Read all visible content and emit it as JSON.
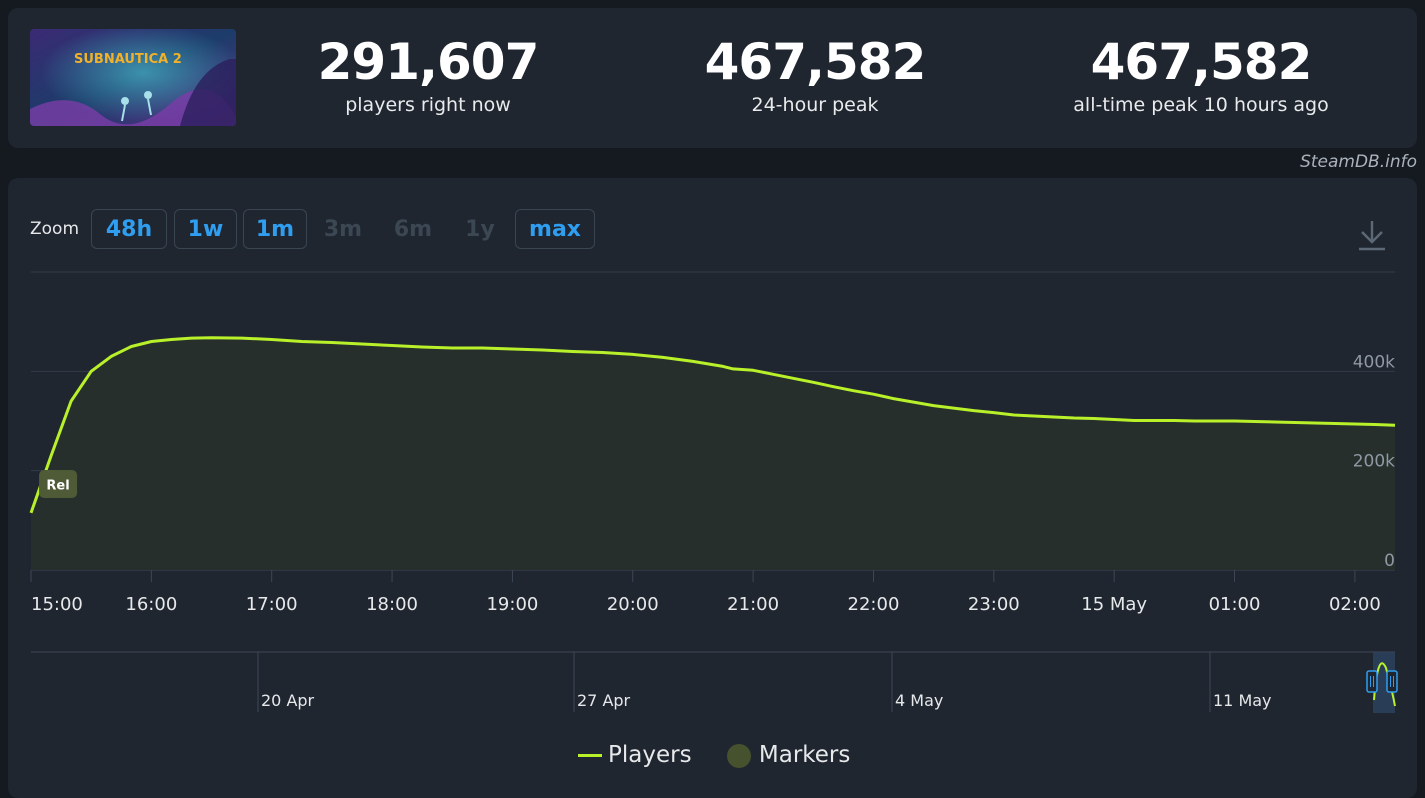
{
  "header": {
    "game_logo_text": "SUBNAUTICA 2",
    "stats": [
      {
        "value": "291,607",
        "label": "players right now"
      },
      {
        "value": "467,582",
        "label": "24-hour peak"
      },
      {
        "value": "467,582",
        "label": "all-time peak 10 hours ago"
      }
    ]
  },
  "credit": "SteamDB.info",
  "zoom": {
    "label": "Zoom",
    "options": [
      {
        "label": "48h",
        "enabled": true
      },
      {
        "label": "1w",
        "enabled": true
      },
      {
        "label": "1m",
        "enabled": true
      },
      {
        "label": "3m",
        "enabled": false
      },
      {
        "label": "6m",
        "enabled": false
      },
      {
        "label": "1y",
        "enabled": false
      },
      {
        "label": "max",
        "enabled": true
      }
    ]
  },
  "icons": {
    "download": "download-icon"
  },
  "legend": {
    "players": "Players",
    "markers": "Markers"
  },
  "colors": {
    "line": "#b8f02a",
    "accent": "#2f9ef0",
    "panel": "#1f2630",
    "background": "#151a21"
  },
  "chart_data": {
    "type": "line",
    "series": [
      {
        "name": "Players",
        "x": [
          "15:00",
          "15:10",
          "15:20",
          "15:30",
          "15:40",
          "15:50",
          "16:00",
          "16:10",
          "16:20",
          "16:30",
          "16:45",
          "17:00",
          "17:15",
          "17:30",
          "17:45",
          "18:00",
          "18:15",
          "18:30",
          "18:45",
          "19:00",
          "19:15",
          "19:30",
          "19:45",
          "20:00",
          "20:15",
          "20:30",
          "20:45",
          "20:50",
          "21:00",
          "21:10",
          "21:20",
          "21:30",
          "21:40",
          "21:50",
          "22:00",
          "22:10",
          "22:20",
          "22:30",
          "22:40",
          "22:50",
          "23:00",
          "23:10",
          "23:20",
          "23:30",
          "23:40",
          "23:50",
          "00:00",
          "00:10",
          "00:20",
          "00:30",
          "00:40",
          "00:50",
          "01:00",
          "01:10",
          "01:20",
          "01:30",
          "01:40",
          "01:50",
          "02:00",
          "02:10",
          "02:20"
        ],
        "values": [
          115000,
          230000,
          340000,
          400000,
          430000,
          450000,
          460000,
          464000,
          467000,
          467582,
          467000,
          464000,
          460000,
          458000,
          455000,
          452000,
          449000,
          447000,
          447000,
          445000,
          443000,
          440000,
          438000,
          434000,
          428000,
          420000,
          410000,
          405000,
          402000,
          394000,
          386000,
          378000,
          369000,
          361000,
          354000,
          345000,
          338000,
          331000,
          326000,
          321000,
          317000,
          312000,
          310000,
          308000,
          306000,
          305000,
          303000,
          301000,
          301000,
          301000,
          300000,
          300000,
          300000,
          299000,
          298000,
          297000,
          296000,
          295000,
          294000,
          293000,
          291607
        ]
      }
    ],
    "y_ticks": [
      "0",
      "200k",
      "400k"
    ],
    "x_ticks": [
      "15:00",
      "16:00",
      "17:00",
      "18:00",
      "19:00",
      "20:00",
      "21:00",
      "22:00",
      "23:00",
      "15 May",
      "01:00",
      "02:00"
    ],
    "ylim": [
      0,
      600000
    ],
    "grid": true,
    "markers": [
      {
        "label": "Rel",
        "x": "15:10"
      }
    ],
    "navigator": {
      "labels": [
        "20 Apr",
        "27 Apr",
        "4 May",
        "11 May"
      ]
    },
    "legend_position": "bottom-center"
  }
}
